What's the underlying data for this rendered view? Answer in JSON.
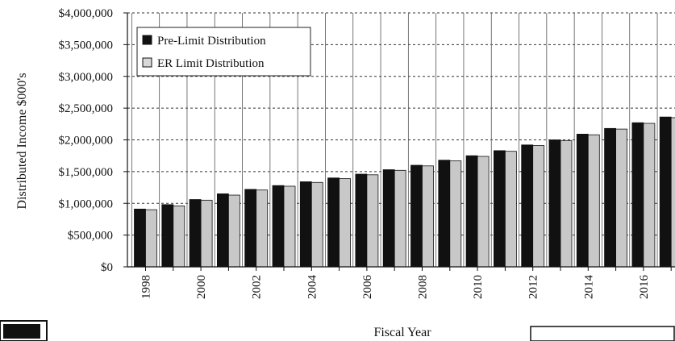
{
  "chart_data": {
    "type": "bar",
    "xlabel": "Fiscal Year",
    "ylabel": "Distributed Income $000's",
    "ylim": [
      0,
      4000000
    ],
    "y_ticks": [
      0,
      500000,
      1000000,
      1500000,
      2000000,
      2500000,
      3000000,
      3500000,
      4000000
    ],
    "y_tick_labels": [
      "$0",
      "$500,000",
      "$1,000,000",
      "$1,500,000",
      "$2,000,000",
      "$2,500,000",
      "$3,000,000",
      "$3,500,000",
      "$4,000,000"
    ],
    "categories": [
      "1998",
      "1999",
      "2000",
      "2001",
      "2002",
      "2003",
      "2004",
      "2005",
      "2006",
      "2007",
      "2008",
      "2009",
      "2010",
      "2011",
      "2012",
      "2013",
      "2014",
      "2015",
      "2016",
      "2017"
    ],
    "x_tick_labels_shown": [
      "1998",
      "2000",
      "2002",
      "2004",
      "2006",
      "2008",
      "2010",
      "2012",
      "2014",
      "2016"
    ],
    "series": [
      {
        "name": "Pre-Limit Distribution",
        "color": "#111111",
        "values": [
          910000,
          980000,
          1060000,
          1150000,
          1220000,
          1280000,
          1340000,
          1400000,
          1460000,
          1530000,
          1600000,
          1680000,
          1750000,
          1830000,
          1920000,
          2000000,
          2090000,
          2180000,
          2270000,
          2360000
        ]
      },
      {
        "name": "ER Limit Distribution",
        "color": "#c8c8c8",
        "values": [
          900000,
          960000,
          1050000,
          1130000,
          1210000,
          1270000,
          1330000,
          1390000,
          1450000,
          1520000,
          1590000,
          1670000,
          1740000,
          1820000,
          1910000,
          1990000,
          2080000,
          2170000,
          2260000,
          2350000
        ]
      }
    ],
    "grid": true,
    "legend_position": "top-left"
  }
}
